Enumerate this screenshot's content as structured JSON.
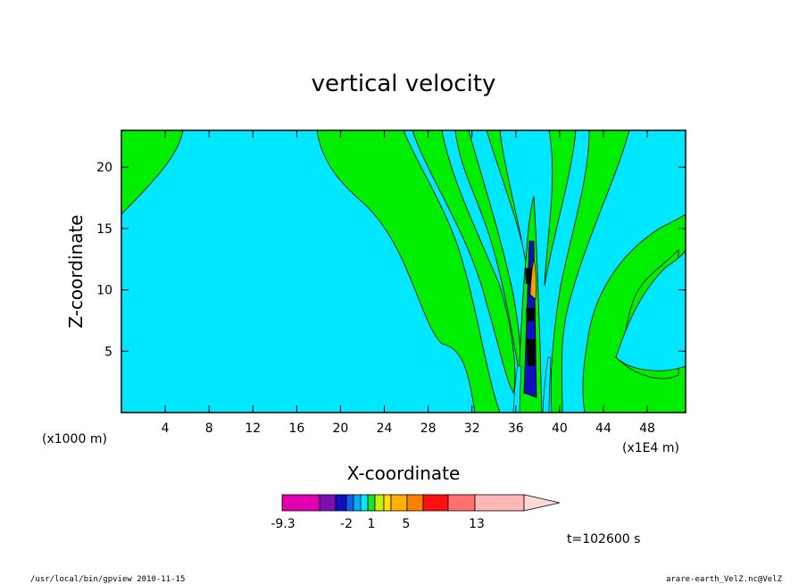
{
  "chart_data": {
    "type": "heatmap",
    "title": "vertical velocity",
    "xlabel": "X-coordinate",
    "ylabel": "Z-coordinate",
    "x_scale_note": "(x1000 m)",
    "x_scale_note_right": "(x1E4 m)",
    "xlim": [
      0,
      51.5
    ],
    "ylim": [
      0,
      23
    ],
    "x_ticks": [
      "4",
      "8",
      "12",
      "16",
      "20",
      "24",
      "28",
      "32",
      "36",
      "40",
      "44",
      "48"
    ],
    "y_ticks": [
      "5",
      "10",
      "15",
      "20"
    ],
    "colorbar": {
      "labels": [
        "-9.3",
        "-2",
        "1",
        "5",
        "13"
      ],
      "colors": [
        "#e000b0",
        "#7a10b0",
        "#1010c0",
        "#1060f0",
        "#00b0ff",
        "#00e8ff",
        "#20e020",
        "#c8f000",
        "#ffe000",
        "#ffb000",
        "#ff8000",
        "#ff1010",
        "#ff7070",
        "#ffb8b8",
        "#ffd8d8"
      ]
    },
    "colors": {
      "background_fill": "#00e8ff",
      "positive_fill": "#00ee00",
      "strong_positive": "#ffa000",
      "contour_line": "#000000"
    },
    "time_label": "t=102600 s"
  },
  "footer": {
    "left": "/usr/local/bin/gpview  2010-11-15",
    "right": "arare-earth_VelZ.nc@VelZ"
  }
}
